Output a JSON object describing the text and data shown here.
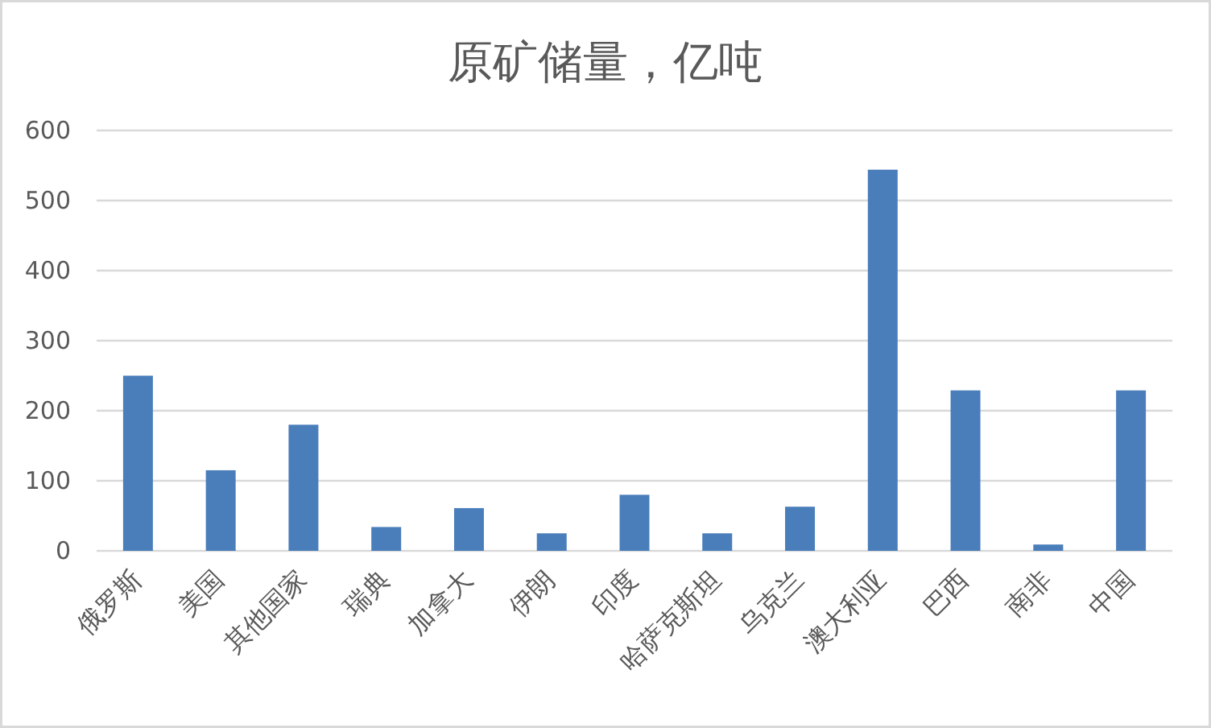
{
  "chart_data": {
    "type": "bar",
    "title": "原矿储量，亿吨",
    "categories": [
      "俄罗斯",
      "美国",
      "其他国家",
      "瑞典",
      "加拿大",
      "伊朗",
      "印度",
      "哈萨克斯坦",
      "乌克兰",
      "澳大利亚",
      "巴西",
      "南非",
      "中国"
    ],
    "values": [
      250,
      115,
      180,
      34,
      61,
      25,
      80,
      25,
      63,
      544,
      229,
      9,
      229
    ],
    "color": "#4a7ebb",
    "ylim": [
      0,
      600
    ],
    "yticks": [
      0,
      100,
      200,
      300,
      400,
      500,
      600
    ],
    "grid": "y"
  }
}
